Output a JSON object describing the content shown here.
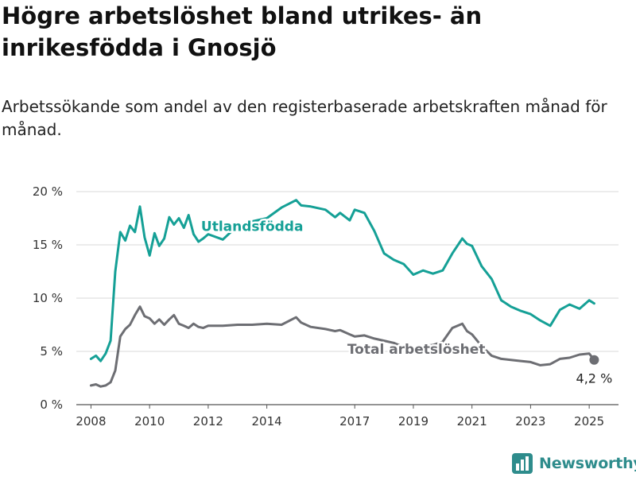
{
  "title": "Högre arbetslöshet bland utrikes- än inrikesfödda i Gnosjö",
  "subtitle": "Arbetssökande som andel av den registerbaserade arbetskraften månad för månad.",
  "brand": {
    "name": "Newsworthy",
    "icon": "bar-chart-logo-icon",
    "color": "#2e8c8c"
  },
  "chart_data": {
    "type": "line",
    "title": "Högre arbetslöshet bland utrikes- än inrikesfödda i Gnosjö",
    "xlabel": "",
    "ylabel": "",
    "xlim": [
      2007.5,
      2026.0
    ],
    "ylim": [
      0,
      20
    ],
    "grid": true,
    "y_ticks": [
      0,
      5,
      10,
      15,
      20
    ],
    "y_tick_labels": [
      "0 %",
      "5 %",
      "10 %",
      "15 %",
      "20 %"
    ],
    "x_ticks": [
      2008,
      2010,
      2012,
      2014,
      2017,
      2019,
      2021,
      2023,
      2025
    ],
    "x_tick_labels": [
      "2008",
      "2010",
      "2012",
      "2014",
      "2017",
      "2019",
      "2021",
      "2023",
      "2025"
    ],
    "end_label": "4,2 %",
    "series": [
      {
        "name": "Utlandsfödda",
        "color": "#15a096",
        "x": [
          2008.0,
          2008.17,
          2008.33,
          2008.5,
          2008.67,
          2008.83,
          2009.0,
          2009.17,
          2009.33,
          2009.5,
          2009.67,
          2009.83,
          2010.0,
          2010.17,
          2010.33,
          2010.5,
          2010.67,
          2010.83,
          2011.0,
          2011.17,
          2011.33,
          2011.5,
          2011.67,
          2011.83,
          2012.0,
          2012.5,
          2013.0,
          2013.5,
          2014.0,
          2014.5,
          2015.0,
          2015.17,
          2015.5,
          2016.0,
          2016.33,
          2016.5,
          2016.83,
          2017.0,
          2017.33,
          2017.67,
          2018.0,
          2018.33,
          2018.67,
          2019.0,
          2019.33,
          2019.67,
          2020.0,
          2020.33,
          2020.67,
          2020.83,
          2021.0,
          2021.33,
          2021.67,
          2022.0,
          2022.33,
          2022.67,
          2023.0,
          2023.33,
          2023.67,
          2024.0,
          2024.33,
          2024.67,
          2025.0,
          2025.17
        ],
        "values": [
          4.3,
          4.6,
          4.1,
          4.8,
          6.0,
          12.5,
          16.2,
          15.4,
          16.8,
          16.2,
          18.6,
          15.7,
          14.0,
          16.1,
          14.9,
          15.6,
          17.6,
          16.9,
          17.5,
          16.6,
          17.8,
          16.0,
          15.3,
          15.6,
          16.0,
          15.5,
          16.8,
          17.2,
          17.5,
          18.5,
          19.2,
          18.7,
          18.6,
          18.3,
          17.6,
          18.0,
          17.3,
          18.3,
          18.0,
          16.3,
          14.2,
          13.6,
          13.2,
          12.2,
          12.6,
          12.3,
          12.6,
          14.2,
          15.6,
          15.1,
          14.9,
          13.0,
          11.8,
          9.8,
          9.2,
          8.8,
          8.5,
          7.9,
          7.4,
          8.9,
          9.4,
          9.0,
          9.8,
          9.5
        ]
      },
      {
        "name": "Total arbetslöshet",
        "color": "#6d6e73",
        "x": [
          2008.0,
          2008.17,
          2008.33,
          2008.5,
          2008.67,
          2008.83,
          2009.0,
          2009.17,
          2009.33,
          2009.5,
          2009.67,
          2009.83,
          2010.0,
          2010.17,
          2010.33,
          2010.5,
          2010.67,
          2010.83,
          2011.0,
          2011.17,
          2011.33,
          2011.5,
          2011.67,
          2011.83,
          2012.0,
          2012.5,
          2013.0,
          2013.5,
          2014.0,
          2014.5,
          2015.0,
          2015.17,
          2015.5,
          2016.0,
          2016.33,
          2016.5,
          2016.83,
          2017.0,
          2017.33,
          2017.67,
          2018.0,
          2018.33,
          2018.67,
          2019.0,
          2019.33,
          2019.67,
          2020.0,
          2020.33,
          2020.67,
          2020.83,
          2021.0,
          2021.33,
          2021.67,
          2022.0,
          2022.33,
          2022.67,
          2023.0,
          2023.33,
          2023.67,
          2024.0,
          2024.33,
          2024.67,
          2025.0,
          2025.17
        ],
        "values": [
          1.8,
          1.9,
          1.7,
          1.8,
          2.1,
          3.2,
          6.4,
          7.1,
          7.5,
          8.4,
          9.2,
          8.3,
          8.1,
          7.6,
          8.0,
          7.5,
          8.0,
          8.4,
          7.6,
          7.4,
          7.2,
          7.6,
          7.3,
          7.2,
          7.4,
          7.4,
          7.5,
          7.5,
          7.6,
          7.5,
          8.2,
          7.7,
          7.3,
          7.1,
          6.9,
          7.0,
          6.6,
          6.4,
          6.5,
          6.2,
          6.0,
          5.8,
          5.4,
          5.3,
          5.5,
          5.6,
          5.9,
          7.2,
          7.6,
          6.9,
          6.6,
          5.5,
          4.6,
          4.3,
          4.2,
          4.1,
          4.0,
          3.7,
          3.8,
          4.3,
          4.4,
          4.7,
          4.8,
          4.2
        ]
      }
    ]
  }
}
